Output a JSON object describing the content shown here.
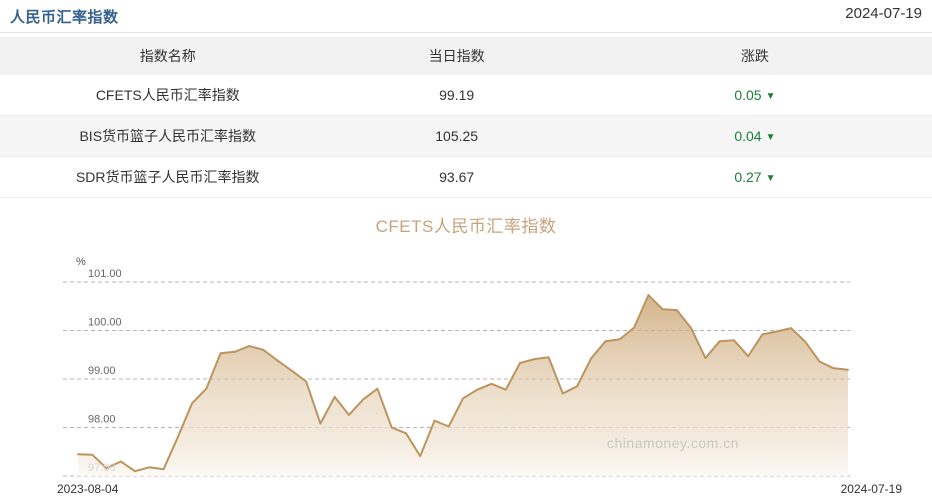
{
  "page": {
    "title": "人民币汇率指数",
    "date": "2024-07-19"
  },
  "table": {
    "columns": [
      {
        "label": "指数名称"
      },
      {
        "label": "当日指数"
      },
      {
        "label": "涨跌"
      }
    ],
    "rows": [
      {
        "name": "CFETS人民币汇率指数",
        "value": "99.19",
        "change": "0.05",
        "direction": "down"
      },
      {
        "name": "BIS货币篮子人民币汇率指数",
        "value": "105.25",
        "change": "0.04",
        "direction": "down"
      },
      {
        "name": "SDR货币篮子人民币汇率指数",
        "value": "93.67",
        "change": "0.27",
        "direction": "down"
      }
    ],
    "down_arrow_glyph": "▼",
    "change_color": "#1c7d39"
  },
  "chart": {
    "title": "CFETS人民币汇率指数",
    "unit_label": "%",
    "watermark": "chinamoney.com.cn"
  },
  "chart_data": {
    "type": "area",
    "title": "CFETS人民币汇率指数",
    "ylabel": "%",
    "x_start_label": "2023-08-04",
    "x_end_label": "2024-07-19",
    "yticks": [
      101,
      100,
      99,
      98,
      97
    ],
    "ylim": [
      96.9,
      101.35
    ],
    "grid": "horizontal-dashed",
    "legend_position": "none",
    "line_color": "#bd9460",
    "area_top_color": "#c9a26f",
    "area_bottom_color": "#fcf9f5",
    "values": [
      97.45,
      97.44,
      97.16,
      97.3,
      97.1,
      97.18,
      97.14,
      97.8,
      98.5,
      98.8,
      99.53,
      99.56,
      99.68,
      99.6,
      99.38,
      99.17,
      98.95,
      98.08,
      98.63,
      98.26,
      98.58,
      98.8,
      98.0,
      97.88,
      97.41,
      98.14,
      98.02,
      98.6,
      98.78,
      98.9,
      98.78,
      99.33,
      99.41,
      99.45,
      98.7,
      98.85,
      99.43,
      99.78,
      99.82,
      100.06,
      100.73,
      100.44,
      100.42,
      100.05,
      99.43,
      99.78,
      99.8,
      99.47,
      99.92,
      99.98,
      100.05,
      99.77,
      99.36,
      99.22,
      99.19
    ]
  }
}
